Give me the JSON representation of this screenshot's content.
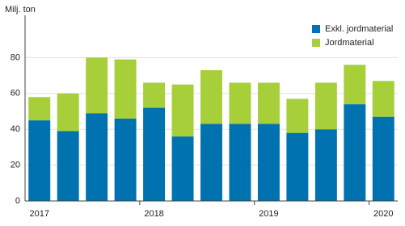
{
  "chart_data": {
    "type": "stacked-bar",
    "y_label": "Milj. ton",
    "categories": [
      "2017",
      null,
      null,
      null,
      "2018",
      null,
      null,
      null,
      "2019",
      null,
      null,
      null,
      "2020"
    ],
    "series": [
      {
        "name": "Exkl. jordmaterial",
        "color": "#0072b0",
        "values": [
          45,
          39,
          49,
          46,
          52,
          36,
          43,
          43,
          43,
          38,
          40,
          54,
          47
        ]
      },
      {
        "name": "Jordmaterial",
        "color": "#a6cf3a",
        "values": [
          13,
          21,
          31,
          33,
          14,
          29,
          30,
          23,
          23,
          19,
          26,
          22,
          20
        ]
      }
    ],
    "ylim": [
      0,
      100
    ],
    "yticks": [
      0,
      20,
      40,
      60,
      80
    ],
    "grid": true,
    "legend": "top-right"
  }
}
